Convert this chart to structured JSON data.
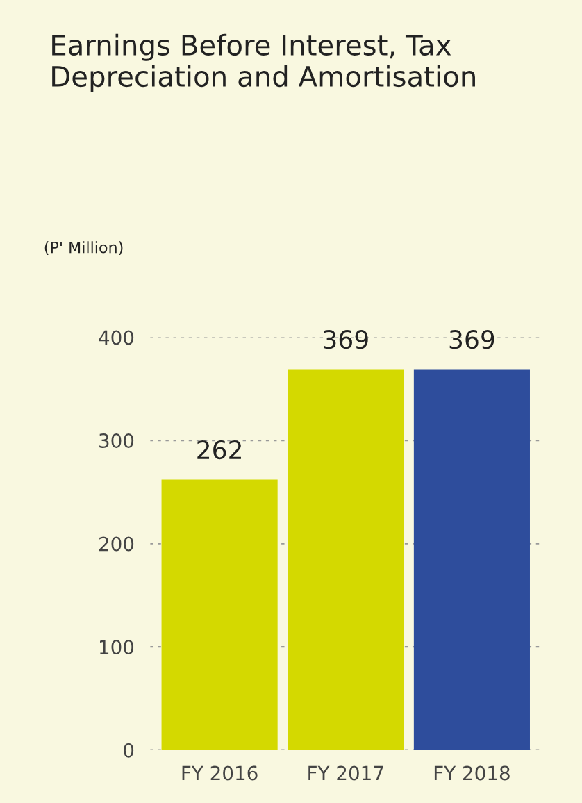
{
  "chart_data": {
    "type": "bar",
    "title": "Earnings Before Interest, Tax\nDepreciation and Amortisation",
    "ylabel": "(P' Million)",
    "categories": [
      "FY 2016",
      "FY 2017",
      "FY 2018"
    ],
    "values": [
      262,
      369,
      369
    ],
    "colors": [
      "#d4d900",
      "#d4d900",
      "#2e4d9c"
    ],
    "ylim": [
      0,
      400
    ],
    "yticks": [
      0,
      100,
      200,
      300,
      400
    ],
    "grid": "y",
    "data_labels": true
  }
}
